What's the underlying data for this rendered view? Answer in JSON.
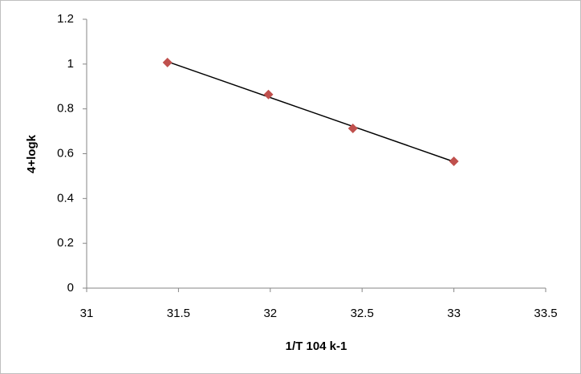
{
  "chart_data": {
    "type": "scatter",
    "x_label": "1/T 104 k-1",
    "y_label": "4+logk",
    "series": [
      {
        "color": "#c0504d",
        "x": [
          31.44,
          31.99,
          32.45,
          33.0
        ],
        "values": [
          1.007,
          0.864,
          0.713,
          0.566
        ]
      }
    ],
    "trendline": true,
    "trendline_color": "#000000",
    "xlim": [
      31,
      33.5
    ],
    "xticks": [
      31,
      31.5,
      32,
      32.5,
      33,
      33.5
    ],
    "ylim": [
      0,
      1.2
    ],
    "yticks": [
      0,
      0.2,
      0.4,
      0.6,
      0.8,
      1,
      1.2
    ],
    "grid": false
  }
}
